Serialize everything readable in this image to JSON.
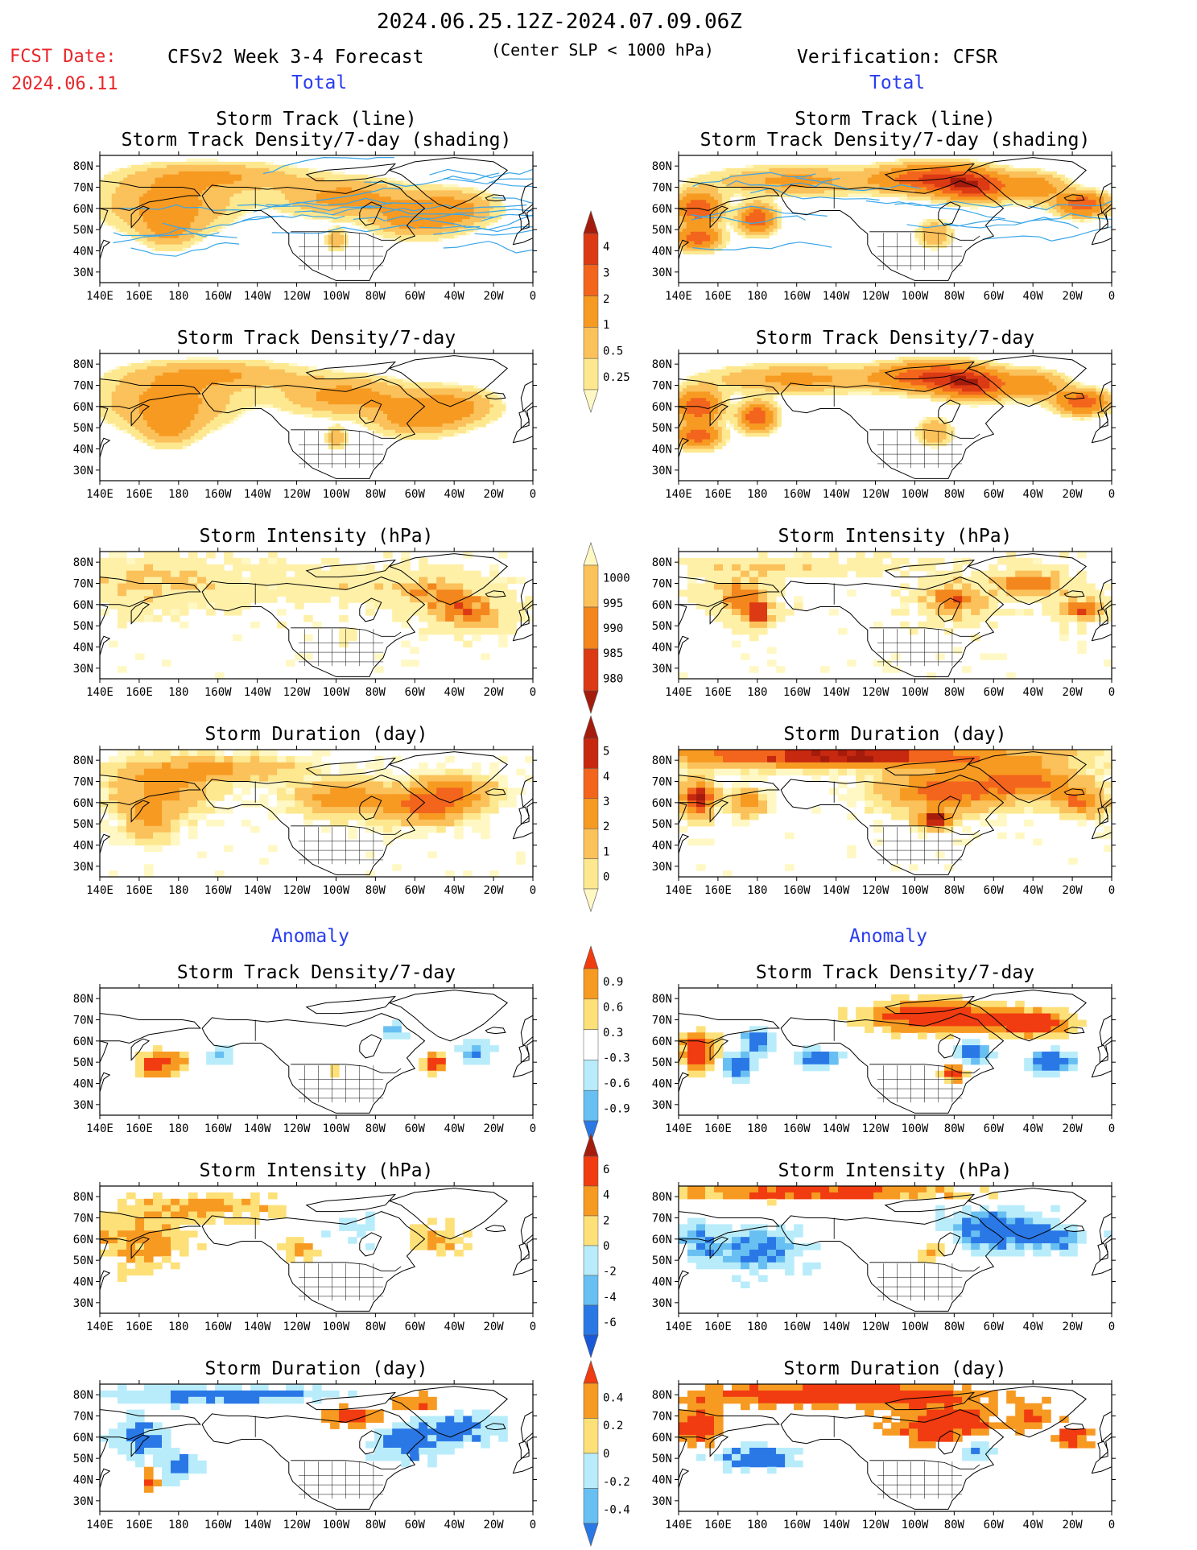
{
  "header": {
    "date_range": "2024.06.25.12Z-2024.07.09.06Z",
    "fcst_label": "FCST Date:",
    "fcst_date": "2024.06.11",
    "left_title": "CFSv2 Week 3-4 Forecast",
    "center_note": "(Center SLP < 1000 hPa)",
    "right_title": "Verification: CFSR"
  },
  "sections": {
    "total": "Total",
    "anomaly": "Anomaly"
  },
  "panel_titles": [
    [
      "Storm Track (line)",
      "Storm Track Density/7-day (shading)"
    ],
    [
      "Storm Track Density/7-day"
    ],
    [
      "Storm Intensity (hPa)"
    ],
    [
      "Storm Duration (day)"
    ],
    [
      "Storm Track Density/7-day"
    ],
    [
      "Storm Intensity (hPa)"
    ],
    [
      "Storm Duration (day)"
    ]
  ],
  "axes": {
    "lon_ticks": [
      "140E",
      "160E",
      "180",
      "160W",
      "140W",
      "120W",
      "100W",
      "80W",
      "60W",
      "40W",
      "20W",
      "0"
    ],
    "lat_ticks": [
      "80N",
      "70N",
      "60N",
      "50N",
      "40N",
      "30N"
    ]
  },
  "colorbars": [
    {
      "name": "density-total",
      "labels": [
        "4",
        "3",
        "2",
        "1",
        "0.5",
        "0.25"
      ],
      "colors": [
        "#a51c0c",
        "#dc3a14",
        "#f3651c",
        "#f79a22",
        "#fbc15a",
        "#fde890",
        "#fff8c4"
      ]
    },
    {
      "name": "intensity-total",
      "labels": [
        "1000",
        "995",
        "990",
        "985",
        "980"
      ],
      "colors": [
        "#fff8c4",
        "#fbc15a",
        "#f3861c",
        "#dc3a14",
        "#a51c0c"
      ]
    },
    {
      "name": "duration-total",
      "labels": [
        "5",
        "4",
        "3",
        "2",
        "1",
        "0"
      ],
      "colors": [
        "#a51c0c",
        "#c62810",
        "#f3651c",
        "#f79a22",
        "#fbc15a",
        "#fde890",
        "#fff8c4"
      ]
    },
    {
      "name": "density-anomaly",
      "labels": [
        "0.9",
        "0.6",
        "0.3",
        "-0.3",
        "-0.6",
        "-0.9"
      ],
      "colors": [
        "#f03c10",
        "#f79a22",
        "#fde078",
        "#ffffff",
        "#b8ecfa",
        "#68bff2",
        "#2a78e6"
      ]
    },
    {
      "name": "intensity-anomaly",
      "labels": [
        "6",
        "4",
        "2",
        "0",
        "-2",
        "-4",
        "-6"
      ],
      "colors": [
        "#a51c0c",
        "#f03c10",
        "#f79a22",
        "#fde078",
        "#b8ecfa",
        "#68bff2",
        "#2a78e6",
        "#1a58d8"
      ]
    },
    {
      "name": "duration-anomaly",
      "labels": [
        "0.4",
        "0.2",
        "0",
        "-0.2",
        "-0.4"
      ],
      "colors": [
        "#f03c10",
        "#f79a22",
        "#fde078",
        "#b8ecfa",
        "#68bff2",
        "#2a78e6"
      ]
    }
  ],
  "chart_data": [
    {
      "type": "heatmap",
      "title": "Storm Track (line) / Storm Track Density/7-day (shading)",
      "source": "CFSv2 Week 3-4 Forecast"
    },
    {
      "type": "heatmap",
      "title": "Storm Track (line) / Storm Track Density/7-day (shading)",
      "source": "Verification: CFSR"
    },
    {
      "type": "heatmap",
      "title": "Storm Track Density/7-day",
      "source": "CFSv2 Week 3-4 Forecast"
    },
    {
      "type": "heatmap",
      "title": "Storm Track Density/7-day",
      "source": "Verification: CFSR"
    },
    {
      "type": "heatmap",
      "title": "Storm Intensity (hPa)",
      "source": "CFSv2 Week 3-4 Forecast"
    },
    {
      "type": "heatmap",
      "title": "Storm Intensity (hPa)",
      "source": "Verification: CFSR"
    },
    {
      "type": "heatmap",
      "title": "Storm Duration (day)",
      "source": "CFSv2 Week 3-4 Forecast"
    },
    {
      "type": "heatmap",
      "title": "Storm Duration (day)",
      "source": "Verification: CFSR"
    },
    {
      "type": "heatmap",
      "title": "Storm Track Density/7-day",
      "source": "CFSv2 Week 3-4 Forecast"
    },
    {
      "type": "heatmap",
      "title": "Storm Track Density/7-day",
      "source": "Verification: CFSR"
    },
    {
      "type": "heatmap",
      "title": "Storm Intensity (hPa)",
      "source": "CFSv2 Week 3-4 Forecast"
    },
    {
      "type": "heatmap",
      "title": "Storm Intensity (hPa)",
      "source": "Verification: CFSR"
    },
    {
      "type": "heatmap",
      "title": "Storm Duration (day)",
      "source": "CFSv2 Week 3-4 Forecast"
    },
    {
      "type": "heatmap",
      "title": "Storm Duration (day)",
      "source": "Verification: CFSR"
    }
  ]
}
